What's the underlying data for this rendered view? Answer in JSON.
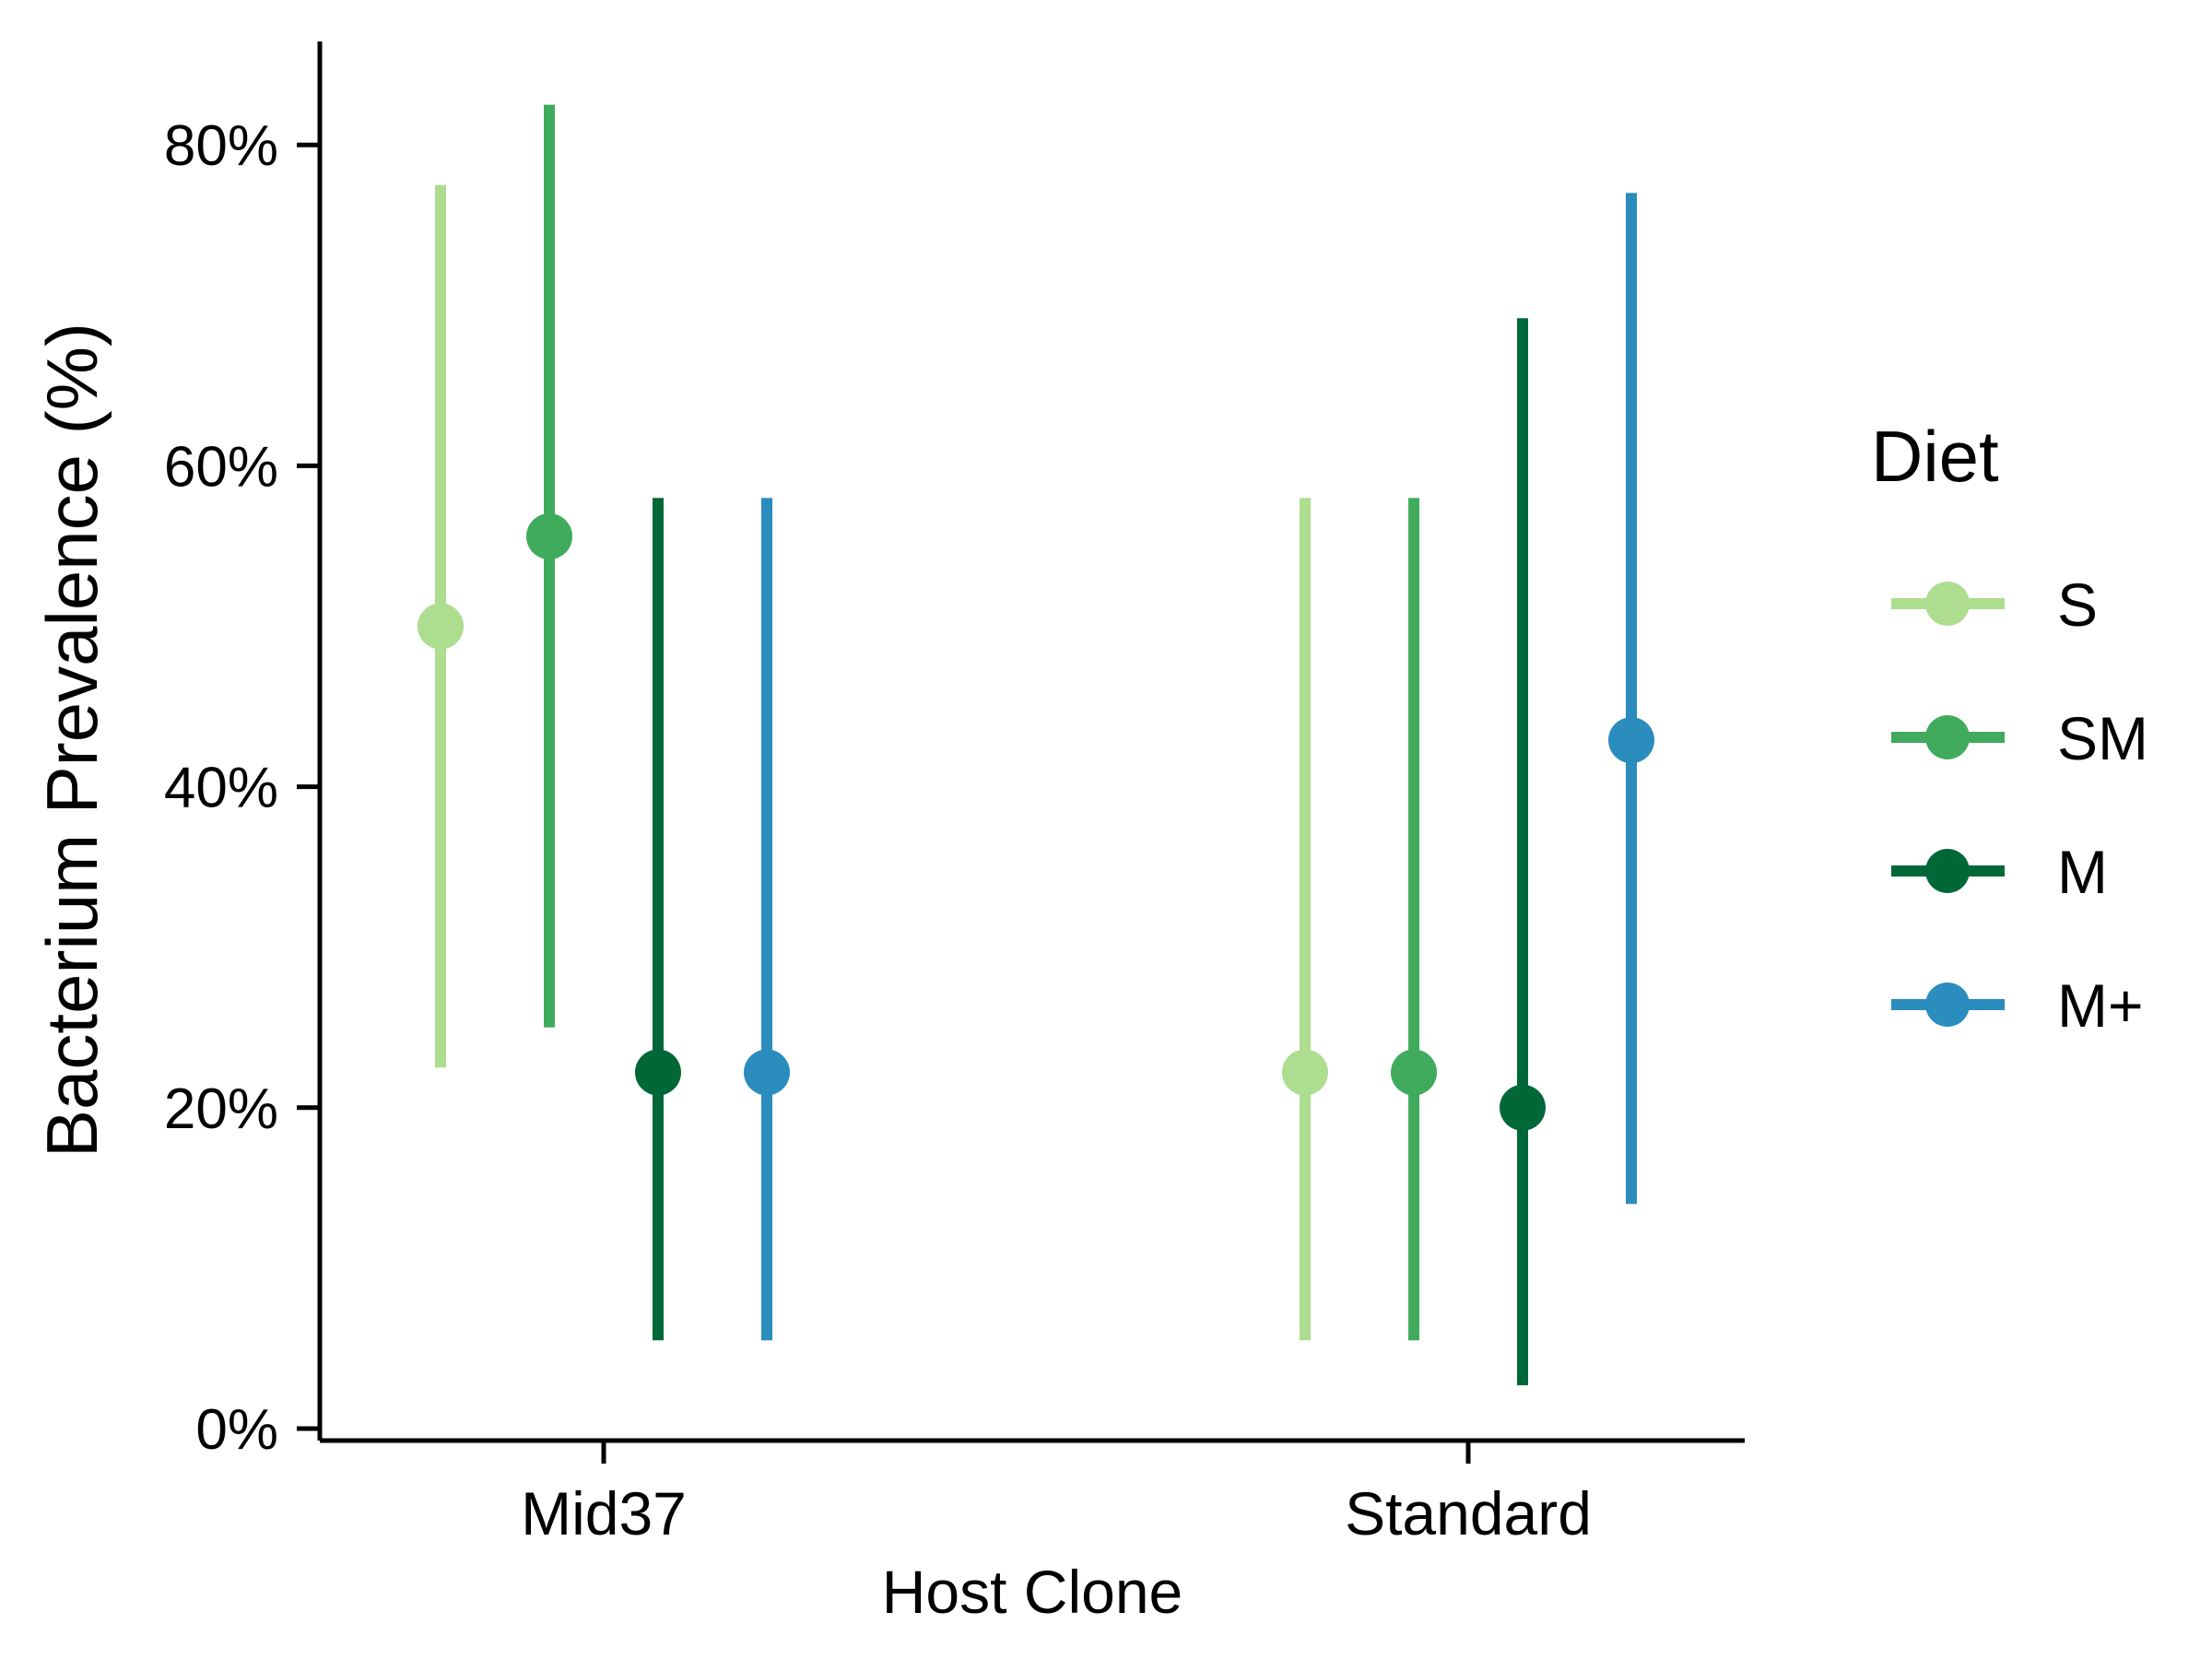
{
  "chart_data": {
    "type": "pointrange",
    "title": "",
    "xlabel": "Host Clone",
    "ylabel": "Bacterium Prevalence (%)",
    "categories": [
      "Mid37",
      "Standard"
    ],
    "ylim": [
      0,
      0.86
    ],
    "yticks": [
      0,
      0.2,
      0.4,
      0.6,
      0.8
    ],
    "ytick_labels": [
      "0%",
      "20%",
      "40%",
      "60%",
      "80%"
    ],
    "grid": false,
    "legend": {
      "title": "Diet",
      "position": "right"
    },
    "series": [
      {
        "name": "S",
        "color": "#addd8e",
        "points": [
          {
            "y": 0.5,
            "lo": 0.225,
            "hi": 0.775
          },
          {
            "y": 0.222,
            "lo": 0.055,
            "hi": 0.58
          }
        ]
      },
      {
        "name": "SM",
        "color": "#41ab5d",
        "points": [
          {
            "y": 0.556,
            "lo": 0.25,
            "hi": 0.825
          },
          {
            "y": 0.222,
            "lo": 0.055,
            "hi": 0.58
          }
        ]
      },
      {
        "name": "M",
        "color": "#006837",
        "points": [
          {
            "y": 0.222,
            "lo": 0.055,
            "hi": 0.58
          },
          {
            "y": 0.2,
            "lo": 0.027,
            "hi": 0.692
          }
        ]
      },
      {
        "name": "M+",
        "color": "#2b8cbe",
        "points": [
          {
            "y": 0.222,
            "lo": 0.055,
            "hi": 0.58
          },
          {
            "y": 0.429,
            "lo": 0.14,
            "hi": 0.77
          }
        ]
      }
    ]
  }
}
